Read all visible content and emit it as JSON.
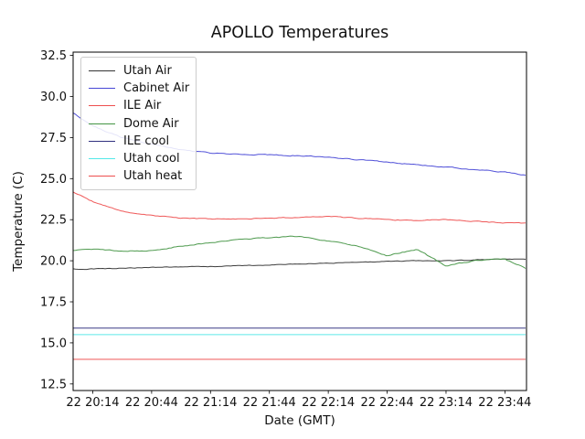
{
  "window": {
    "background": "#ffffff"
  },
  "chart_data": {
    "type": "line",
    "title": "APOLLO Temperatures",
    "xlabel": "Date (GMT)",
    "ylabel": "Temperature (C)",
    "grid": false,
    "legend_position": "upper left",
    "axis_color": "#000000",
    "xtick_labels": [
      "22 20:14",
      "22 20:44",
      "22 21:14",
      "22 21:44",
      "22 22:14",
      "22 22:44",
      "22 23:14",
      "22 23:44"
    ],
    "xtick_minutes": [
      10,
      40,
      70,
      100,
      130,
      160,
      190,
      220
    ],
    "xlim_minutes": [
      0,
      231
    ],
    "x_note": "x axis spans day 22, 20:04 GMT (0 min) to 23:55 GMT (231 min)",
    "ytick_labels": [
      "12.5",
      "15.0",
      "17.5",
      "20.0",
      "22.5",
      "25.0",
      "27.5",
      "30.0",
      "32.5"
    ],
    "ytick_values": [
      12.5,
      15.0,
      17.5,
      20.0,
      22.5,
      25.0,
      27.5,
      30.0,
      32.5
    ],
    "ylim": [
      12.1,
      32.7
    ],
    "x_minutes": [
      0,
      10,
      25,
      40,
      55,
      70,
      85,
      100,
      115,
      130,
      145,
      160,
      175,
      190,
      205,
      220,
      231
    ],
    "series": [
      {
        "name": "Utah Air",
        "color": "#333333",
        "wiggle": 0.7,
        "values": [
          19.5,
          19.5,
          19.55,
          19.6,
          19.62,
          19.65,
          19.7,
          19.75,
          19.8,
          19.85,
          19.9,
          19.95,
          20.0,
          20.0,
          20.05,
          20.1,
          20.1
        ]
      },
      {
        "name": "Cabinet Air",
        "color": "#4747d6",
        "wiggle": 1.0,
        "values": [
          29.0,
          28.2,
          27.5,
          27.1,
          26.75,
          26.55,
          26.5,
          26.45,
          26.4,
          26.3,
          26.15,
          26.0,
          25.85,
          25.7,
          25.55,
          25.4,
          25.2
        ]
      },
      {
        "name": "ILE Air",
        "color": "#ee4f4f",
        "wiggle": 0.9,
        "values": [
          24.2,
          23.6,
          23.0,
          22.75,
          22.6,
          22.55,
          22.55,
          22.6,
          22.65,
          22.7,
          22.6,
          22.5,
          22.45,
          22.5,
          22.4,
          22.3,
          22.3
        ]
      },
      {
        "name": "Dome Air",
        "color": "#449544",
        "wiggle": 1.1,
        "values": [
          20.6,
          20.7,
          20.6,
          20.6,
          20.9,
          21.1,
          21.3,
          21.4,
          21.5,
          21.2,
          20.9,
          20.3,
          20.7,
          19.7,
          20.0,
          20.1,
          19.5
        ]
      },
      {
        "name": "ILE cool",
        "color": "#31317f",
        "wiggle": 0,
        "values": [
          15.9,
          15.9,
          15.9,
          15.9,
          15.9,
          15.9,
          15.9,
          15.9,
          15.9,
          15.9,
          15.9,
          15.9,
          15.9,
          15.9,
          15.9,
          15.9,
          15.9
        ]
      },
      {
        "name": "Utah cool",
        "color": "#54e8e8",
        "wiggle": 0,
        "values": [
          15.5,
          15.5,
          15.5,
          15.5,
          15.5,
          15.5,
          15.5,
          15.5,
          15.5,
          15.5,
          15.5,
          15.5,
          15.5,
          15.5,
          15.5,
          15.5,
          15.5
        ]
      },
      {
        "name": "Utah heat",
        "color": "#ee4f4f",
        "wiggle": 0,
        "values": [
          14.0,
          14.0,
          14.0,
          14.0,
          14.0,
          14.0,
          14.0,
          14.0,
          14.0,
          14.0,
          14.0,
          14.0,
          14.0,
          14.0,
          14.0,
          14.0,
          14.0
        ]
      }
    ]
  }
}
